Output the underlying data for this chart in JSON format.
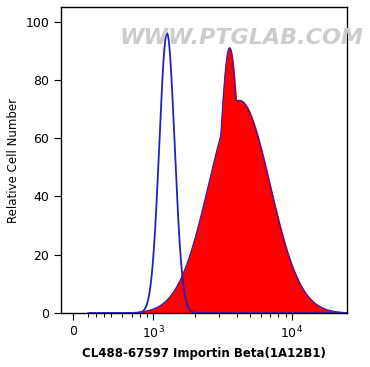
{
  "ylabel": "Relative Cell Number",
  "xlabel": "CL488-67597 Importin Beta(1A12B1)",
  "ylim": [
    0,
    105
  ],
  "yticks": [
    0,
    20,
    40,
    60,
    80,
    100
  ],
  "blue_peak_log": 3.1,
  "blue_peak_height": 96,
  "blue_sigma_log": 0.055,
  "red_peak_log": 3.55,
  "red_peak_height": 91,
  "red_sigma_narrow": 0.07,
  "red_sigma_wide": 0.22,
  "red_shoulder_height": 73,
  "red_shoulder_log": 3.62,
  "red_shoulder_sigma": 0.12,
  "blue_color": "#2222BB",
  "red_color": "#FF0000",
  "background_color": "#ffffff",
  "watermark": "WWW.PTGLAB.COM",
  "watermark_color": "#cccccc",
  "watermark_fontsize": 16,
  "linthresh": 500,
  "linscale": 0.25,
  "xlim_low": -150,
  "xlim_high": 25000,
  "xtick_positions": [
    0,
    1000,
    10000
  ],
  "xtick_labels": [
    "0",
    "$10^3$",
    "$10^4$"
  ]
}
